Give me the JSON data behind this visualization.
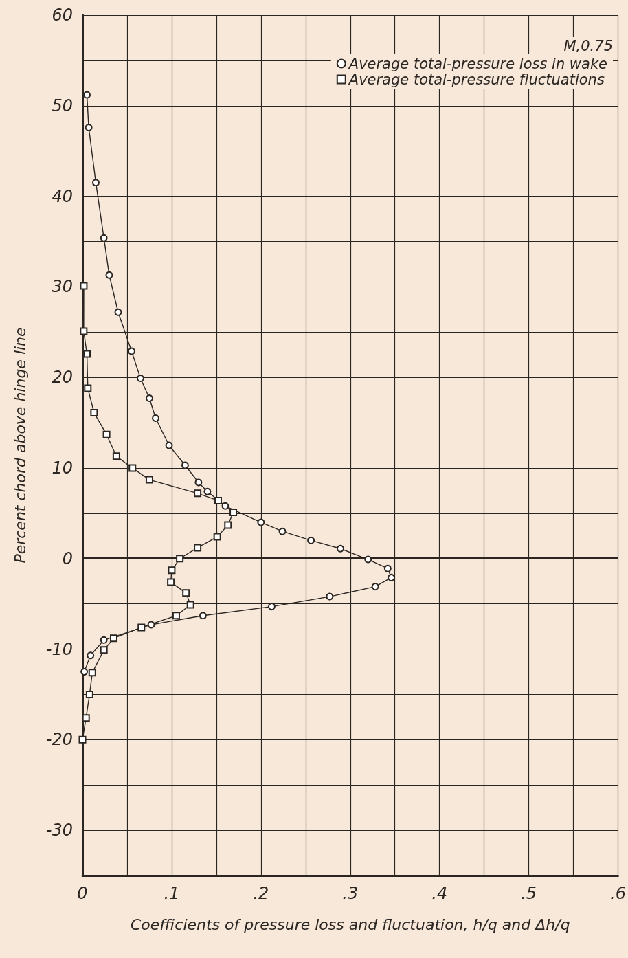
{
  "chart_data": {
    "type": "line",
    "xlabel": "Coefficients of pressure loss and fluctuation, h/q and Δh/q",
    "ylabel": "Percent chord above hinge line",
    "annotations": [
      "M,0.75"
    ],
    "xlim": [
      0,
      0.6
    ],
    "ylim": [
      -35,
      60
    ],
    "xticks": [
      0,
      {
        "value": 0.05,
        "label": null
      },
      {
        "value": 0.1,
        "label": ".1"
      },
      {
        "value": 0.15,
        "label": null
      },
      {
        "value": 0.2,
        "label": ".2"
      },
      {
        "value": 0.25,
        "label": null
      },
      {
        "value": 0.3,
        "label": ".3"
      },
      {
        "value": 0.35,
        "label": null
      },
      {
        "value": 0.4,
        "label": ".4"
      },
      {
        "value": 0.45,
        "label": null
      },
      {
        "value": 0.5,
        "label": ".5"
      },
      {
        "value": 0.55,
        "label": null
      },
      {
        "value": 0.6,
        "label": ".6"
      }
    ],
    "yticks": [
      {
        "value": -35,
        "label": null
      },
      -30,
      {
        "value": -25,
        "label": null
      },
      -20,
      {
        "value": -15,
        "label": null
      },
      -10,
      {
        "value": -5,
        "label": null
      },
      0,
      {
        "value": 5,
        "label": null
      },
      10,
      {
        "value": 15,
        "label": null
      },
      20,
      {
        "value": 25,
        "label": null
      },
      30,
      {
        "value": 35,
        "label": null
      },
      40,
      {
        "value": 45,
        "label": null
      },
      50,
      {
        "value": 55,
        "label": null
      },
      60
    ],
    "grid": true,
    "legend": "top right",
    "line_style": "solid",
    "ref_lines": [
      {
        "axis": "y",
        "value": 0,
        "color": "#2b2622"
      }
    ],
    "series": [
      {
        "name": "Average total-pressure loss in wake",
        "color": "#2b2622",
        "marker": "circle",
        "x": [
          0.005,
          0.007,
          0.015,
          0.024,
          0.03,
          0.04,
          0.055,
          0.065,
          0.075,
          0.082,
          0.097,
          0.115,
          0.13,
          0.14,
          0.16,
          0.2,
          0.224,
          0.256,
          0.289,
          0.32,
          0.342,
          0.346,
          0.328,
          0.277,
          0.212,
          0.135,
          0.077,
          0.024,
          0.009,
          0.002
        ],
        "values": [
          51.2,
          47.6,
          41.5,
          35.4,
          31.3,
          27.2,
          22.9,
          19.9,
          17.7,
          15.5,
          12.5,
          10.3,
          8.4,
          7.4,
          5.8,
          4.0,
          3.0,
          2.0,
          1.1,
          -0.1,
          -1.1,
          -2.1,
          -3.1,
          -4.2,
          -5.3,
          -6.3,
          -7.3,
          -9.0,
          -10.7,
          -12.5
        ]
      },
      {
        "name": "Average total-pressure fluctuations",
        "color": "#2b2622",
        "marker": "square",
        "x": [
          0.0015,
          0.0014,
          0.005,
          0.006,
          0.013,
          0.027,
          0.038,
          0.056,
          0.075,
          0.129,
          0.152,
          0.169,
          0.163,
          0.151,
          0.129,
          0.109,
          0.1,
          0.099,
          0.116,
          0.121,
          0.105,
          0.066,
          0.035,
          0.024,
          0.011,
          0.008,
          0.004,
          0
        ],
        "values": [
          30.1,
          25.1,
          22.6,
          18.8,
          16.1,
          13.7,
          11.3,
          10.0,
          8.7,
          7.2,
          6.4,
          5.1,
          3.7,
          2.4,
          1.2,
          0,
          -1.3,
          -2.6,
          -3.8,
          -5.1,
          -6.3,
          -7.6,
          -8.8,
          -10.1,
          -12.6,
          -15.0,
          -17.6,
          -20.0
        ]
      }
    ]
  }
}
